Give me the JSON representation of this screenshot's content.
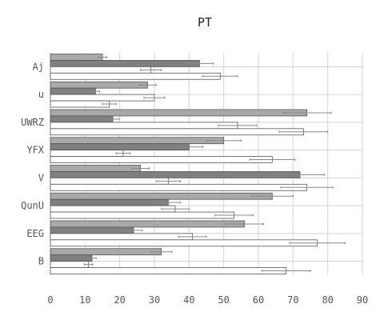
{
  "chart_data": {
    "type": "bar",
    "orientation": "horizontal",
    "title": "PT",
    "xlabel": "",
    "ylabel": "",
    "xlim": [
      0,
      90
    ],
    "x_ticks": [
      0,
      10,
      20,
      30,
      40,
      50,
      60,
      70,
      80,
      90
    ],
    "grid": true,
    "categories": [
      "Aj",
      "u",
      "UWRZ",
      "YFX",
      "V",
      "QunU",
      "EEG",
      "B"
    ],
    "series": [
      {
        "color": "#a9a9a9",
        "values": [
          15,
          28,
          74,
          50,
          26,
          64,
          56,
          32
        ],
        "errors": [
          1.2,
          2.5,
          7,
          5,
          2.5,
          6,
          5.5,
          3
        ]
      },
      {
        "color": "#808080",
        "values": [
          43,
          13,
          18,
          40,
          72,
          34,
          24,
          12
        ],
        "errors": [
          4,
          1.2,
          1.8,
          4,
          7,
          3.5,
          2.5,
          1.2
        ]
      },
      {
        "color": "#ffffff",
        "values": [
          29,
          30,
          54,
          21,
          34,
          36,
          41,
          11
        ],
        "errors": [
          3,
          3,
          5.5,
          2,
          3.5,
          4,
          4,
          1.2
        ]
      },
      {
        "color": "#ffffff",
        "values": [
          49,
          17,
          73,
          64,
          74,
          53,
          77,
          68
        ],
        "errors": [
          5,
          2,
          7,
          6.5,
          7.5,
          5.5,
          8,
          7
        ]
      }
    ]
  }
}
